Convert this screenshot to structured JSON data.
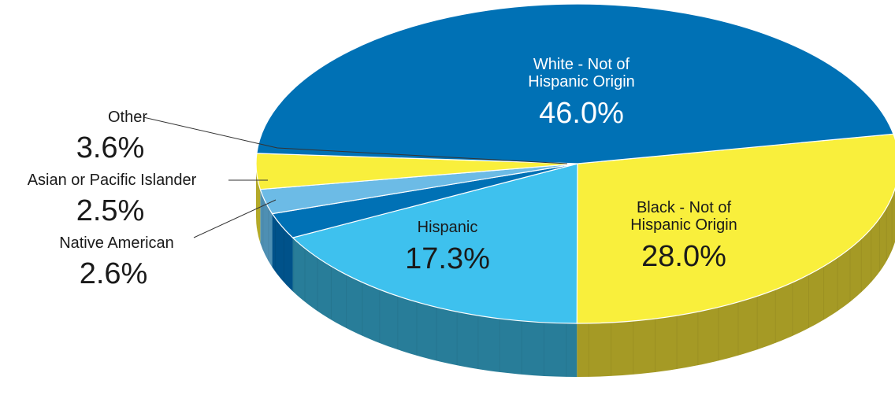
{
  "chart_data": {
    "type": "pie",
    "title": "",
    "slices": [
      {
        "label": "White - Not of\nHispanic Origin",
        "value": 46.0,
        "value_label": "46.0%",
        "color": "#0071b5",
        "side_color": "#005a8f"
      },
      {
        "label": "Black - Not of\nHispanic Origin",
        "value": 28.0,
        "value_label": "28.0%",
        "color": "#f9ef3c",
        "side_color": "#a59a25"
      },
      {
        "label": "Hispanic",
        "value": 17.3,
        "value_label": "17.3%",
        "color": "#3ec1ee",
        "side_color": "#287d99"
      },
      {
        "label": "Native American",
        "value": 2.6,
        "value_label": "2.6%",
        "color": "#0071b5",
        "side_color": "#00528a"
      },
      {
        "label": "Asian or Pacific Islander",
        "value": 2.5,
        "value_label": "2.5%",
        "color": "#6cbbe6",
        "side_color": "#4e8fb3"
      },
      {
        "label": "Other",
        "value": 3.6,
        "value_label": "3.6%",
        "color": "#f9ef3c",
        "side_color": "#b8ae2a"
      }
    ],
    "legend": "none"
  }
}
